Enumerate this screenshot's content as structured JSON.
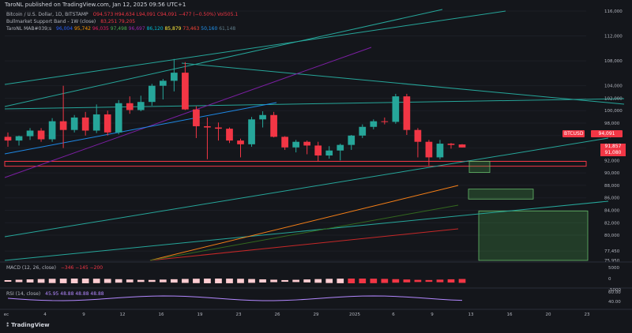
{
  "header": {
    "publish_line": "TaroNL published on TradingView.com, Jan 12, 2025 09:56 UTC+1",
    "symbol_title": "Bitcoin / U.S. Dollar, 1D, BITSTAMP",
    "ohlc": "O94,573 H94,634 L94,091 C94,091 −477 (−0.50%) Vol505.1",
    "indicator1": "Bullmarket Support Band - 1W (close)",
    "indicator1_values": "83,251  79,205",
    "indicator2": "TaroNL MAB#039;s",
    "indicator2_values": [
      "96,004",
      "95,742",
      "96,035",
      "97,498",
      "96,697",
      "86,120",
      "85,879",
      "73,463",
      "50,160",
      "61,148"
    ]
  },
  "price_tags": [
    {
      "label": "BTCUSD",
      "value": "94,091",
      "color": "#f23645"
    },
    {
      "label": "",
      "value": "91,857",
      "color": "#f23645"
    },
    {
      "label": "",
      "value": "91,080",
      "color": "#f23645"
    }
  ],
  "macd": {
    "label": "MACD (12, 26, close)",
    "values": "−346  −145  −200"
  },
  "rsi": {
    "label": "RSI (14, close)",
    "values": "45.95  48.88  48.88  48.88",
    "value": "40.00"
  },
  "footer": {
    "brand": "TradingView"
  },
  "colors": {
    "up": "#26a69a",
    "down": "#f23645",
    "bg": "#14161b",
    "grid": "#1f222a",
    "text": "#b2b5be"
  },
  "chart_data": {
    "type": "candlestick",
    "title": "Bitcoin / U.S. Dollar, 1D, BITSTAMP",
    "y_axis_ticks": [
      "116,000",
      "112,000",
      "108,000",
      "104,000",
      "102,000",
      "100,000",
      "98,000",
      "96,000",
      "94,000",
      "92,000",
      "90,000",
      "88,000",
      "86,000",
      "84,000",
      "82,000",
      "80,000",
      "77,450",
      "75,950"
    ],
    "x_axis_ticks": [
      "ec",
      "4",
      "9",
      "12",
      "16",
      "19",
      "23",
      "26",
      "29",
      "2025",
      "6",
      "9",
      "13",
      "16",
      "20",
      "23"
    ],
    "macd_axis_ticks": [
      "5000",
      "0",
      "-5000"
    ],
    "rsi_axis_ticks": [
      "60.00",
      "40.00"
    ],
    "candles": [
      {
        "o": 95800,
        "h": 96500,
        "l": 94200,
        "c": 95200
      },
      {
        "o": 95200,
        "h": 96000,
        "l": 94400,
        "c": 95900
      },
      {
        "o": 95900,
        "h": 97200,
        "l": 95300,
        "c": 96800
      },
      {
        "o": 96800,
        "h": 97200,
        "l": 95000,
        "c": 95400
      },
      {
        "o": 95400,
        "h": 98800,
        "l": 95000,
        "c": 98300
      },
      {
        "o": 98300,
        "h": 104000,
        "l": 94000,
        "c": 96900
      },
      {
        "o": 96900,
        "h": 99300,
        "l": 96500,
        "c": 98900
      },
      {
        "o": 98900,
        "h": 99800,
        "l": 96000,
        "c": 96800
      },
      {
        "o": 96800,
        "h": 101000,
        "l": 96400,
        "c": 99400
      },
      {
        "o": 99400,
        "h": 100000,
        "l": 96000,
        "c": 96500
      },
      {
        "o": 96500,
        "h": 101700,
        "l": 96200,
        "c": 101200
      },
      {
        "o": 101200,
        "h": 102300,
        "l": 99500,
        "c": 100100
      },
      {
        "o": 100100,
        "h": 102400,
        "l": 99900,
        "c": 101400
      },
      {
        "o": 101400,
        "h": 104300,
        "l": 100800,
        "c": 104000
      },
      {
        "o": 104000,
        "h": 105100,
        "l": 101800,
        "c": 104800
      },
      {
        "o": 104800,
        "h": 108300,
        "l": 103100,
        "c": 106100
      },
      {
        "o": 106100,
        "h": 107800,
        "l": 100100,
        "c": 100200
      },
      {
        "o": 100200,
        "h": 100700,
        "l": 95600,
        "c": 97500
      },
      {
        "o": 97500,
        "h": 98900,
        "l": 92200,
        "c": 97300
      },
      {
        "o": 97300,
        "h": 98100,
        "l": 95200,
        "c": 97100
      },
      {
        "o": 97100,
        "h": 97300,
        "l": 94800,
        "c": 95200
      },
      {
        "o": 95200,
        "h": 95500,
        "l": 92500,
        "c": 94600
      },
      {
        "o": 94600,
        "h": 99000,
        "l": 94200,
        "c": 98600
      },
      {
        "o": 98600,
        "h": 99900,
        "l": 97300,
        "c": 99300
      },
      {
        "o": 99300,
        "h": 99800,
        "l": 95700,
        "c": 95800
      },
      {
        "o": 95800,
        "h": 95900,
        "l": 93700,
        "c": 94100
      },
      {
        "o": 94100,
        "h": 95300,
        "l": 93300,
        "c": 95000
      },
      {
        "o": 95000,
        "h": 95200,
        "l": 93000,
        "c": 94400
      },
      {
        "o": 94400,
        "h": 95000,
        "l": 91800,
        "c": 92800
      },
      {
        "o": 92800,
        "h": 94300,
        "l": 92300,
        "c": 93600
      },
      {
        "o": 93600,
        "h": 94700,
        "l": 92000,
        "c": 94500
      },
      {
        "o": 94500,
        "h": 96100,
        "l": 93700,
        "c": 96000
      },
      {
        "o": 96000,
        "h": 97800,
        "l": 95600,
        "c": 97400
      },
      {
        "o": 97400,
        "h": 98600,
        "l": 97000,
        "c": 98300
      },
      {
        "o": 98300,
        "h": 98900,
        "l": 97800,
        "c": 98200
      },
      {
        "o": 98200,
        "h": 102700,
        "l": 97900,
        "c": 102300
      },
      {
        "o": 102300,
        "h": 102700,
        "l": 96100,
        "c": 96900
      },
      {
        "o": 96900,
        "h": 97200,
        "l": 92500,
        "c": 95000
      },
      {
        "o": 95000,
        "h": 95300,
        "l": 91200,
        "c": 92500
      },
      {
        "o": 92500,
        "h": 95300,
        "l": 92200,
        "c": 94700
      },
      {
        "o": 94700,
        "h": 94800,
        "l": 93900,
        "c": 94500
      },
      {
        "o": 94573,
        "h": 94634,
        "l": 94091,
        "c": 94091
      }
    ],
    "overlay_zones": [
      {
        "y_top": 91857,
        "y_bottom": 91080,
        "kind": "support-band"
      },
      {
        "y_top": 87400,
        "y_bottom": 85800,
        "kind": "target-box"
      },
      {
        "y_top": 83900,
        "y_bottom": 75950,
        "kind": "target-box"
      }
    ],
    "grid": true,
    "legend": "top-left"
  }
}
